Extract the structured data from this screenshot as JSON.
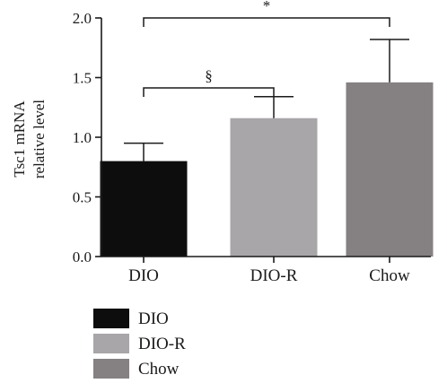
{
  "chart_data": {
    "type": "bar",
    "categories": [
      "DIO",
      "DIO-R",
      "Chow"
    ],
    "values": [
      0.8,
      1.16,
      1.46
    ],
    "error_upper": [
      0.95,
      1.34,
      1.82
    ],
    "colors": [
      "#0d0d0d",
      "#a8a6a8",
      "#858081"
    ],
    "ylabel_lines": [
      "Tsc1 mRNA",
      "relative level"
    ],
    "ylim": [
      0.0,
      2.0
    ],
    "yticks": [
      0.0,
      0.5,
      1.0,
      1.5,
      2.0
    ],
    "ytick_labels": [
      "0.0",
      "0.5",
      "1.0",
      "1.5",
      "2.0"
    ],
    "legend": {
      "placement": "bottom-left",
      "entries": [
        "DIO",
        "DIO-R",
        "Chow"
      ]
    },
    "significance": [
      {
        "from": "DIO",
        "to": "DIO-R",
        "label": "§"
      },
      {
        "from": "DIO",
        "to": "Chow",
        "label": "*"
      }
    ]
  }
}
